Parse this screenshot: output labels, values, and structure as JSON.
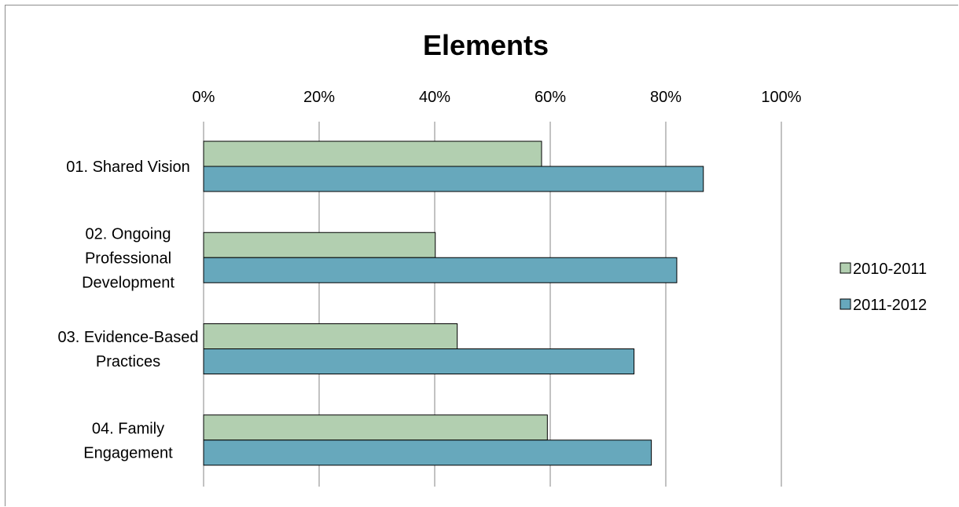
{
  "chart_data": {
    "type": "bar",
    "orientation": "horizontal",
    "title": "Elements",
    "xlabel": "",
    "ylabel": "",
    "xlim": [
      0,
      100
    ],
    "x_ticks": [
      "0%",
      "20%",
      "40%",
      "60%",
      "80%",
      "100%"
    ],
    "x_axis_position": "top",
    "grid": true,
    "legend_position": "right",
    "categories": [
      [
        "01. Shared Vision"
      ],
      [
        "02. Ongoing",
        "Professional",
        "Development"
      ],
      [
        "03. Evidence-Based",
        "Practices"
      ],
      [
        "04. Family",
        "Engagement"
      ]
    ],
    "series": [
      {
        "name": "2010-2011",
        "color": "#b2cfb0",
        "values": [
          58.5,
          40.1,
          43.9,
          59.5
        ]
      },
      {
        "name": "2011-2012",
        "color": "#67a8bc",
        "values": [
          86.5,
          81.9,
          74.5,
          77.5
        ]
      }
    ]
  }
}
